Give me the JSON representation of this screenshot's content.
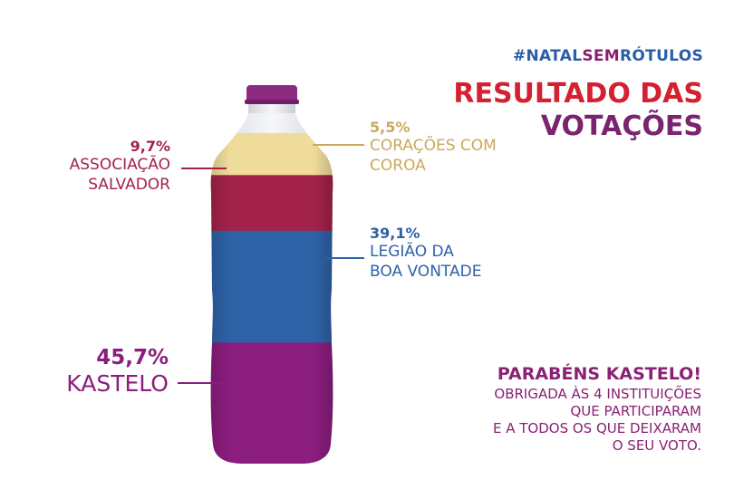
{
  "hashtag": {
    "part1": "#NATAL",
    "part2": "SEM",
    "part3": "RÓTULOS"
  },
  "title": {
    "line1": "RESULTADO DAS",
    "line2": "VOTAÇÕES"
  },
  "chart_data": {
    "type": "bar",
    "categories": [
      "CORAÇÕES COM COROA",
      "ASSOCIAÇÃO SALVADOR",
      "LEGIÃO DA BOA VONTADE",
      "KASTELO"
    ],
    "values": [
      5.5,
      9.7,
      39.1,
      45.7
    ],
    "value_labels": [
      "5,5%",
      "9,7%",
      "39,1%",
      "45,7%"
    ],
    "label_lines": [
      [
        "CORAÇÕES COM",
        "COROA"
      ],
      [
        "ASSOCIAÇÃO",
        "SALVADOR"
      ],
      [
        "LEGIÃO DA",
        "BOA VONTADE"
      ],
      [
        "KASTELO"
      ]
    ],
    "colors": [
      "#f0dc9a",
      "#a3224a",
      "#2e62a6",
      "#8b1d7e"
    ],
    "label_colors": [
      "#cba85e",
      "#a3224a",
      "#2e62a6",
      "#8b1d7e"
    ],
    "stacking": "stacked",
    "title": "RESULTADO DAS VOTAÇÕES"
  },
  "closing": {
    "headline": "PARABÉNS KASTELO!",
    "lines": [
      "OBRIGADA ÀS 4 INSTITUIÇÕES",
      "QUE PARTICIPARAM",
      "E A TODOS OS QUE DEIXARAM",
      "O SEU VOTO."
    ]
  },
  "colors": {
    "cap": "#8e2a82",
    "bottle_glass": "#e8e8ec"
  }
}
